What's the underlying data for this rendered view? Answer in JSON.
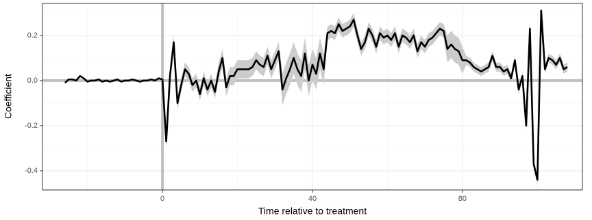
{
  "chart_data": {
    "type": "line",
    "xlabel": "Time relative to treatment",
    "ylabel": "Coefficient",
    "x": [
      -26,
      -25,
      -24,
      -23,
      -22,
      -21,
      -20,
      -19,
      -18,
      -17,
      -16,
      -15,
      -14,
      -13,
      -12,
      -11,
      -10,
      -9,
      -8,
      -7,
      -6,
      -5,
      -4,
      -3,
      -2,
      -1,
      0,
      1,
      2,
      3,
      4,
      5,
      6,
      7,
      8,
      9,
      10,
      11,
      12,
      13,
      14,
      15,
      16,
      17,
      18,
      19,
      20,
      21,
      22,
      23,
      24,
      25,
      26,
      27,
      28,
      29,
      30,
      31,
      32,
      33,
      34,
      35,
      36,
      37,
      38,
      39,
      40,
      41,
      42,
      43,
      44,
      45,
      46,
      47,
      48,
      49,
      50,
      51,
      52,
      53,
      54,
      55,
      56,
      57,
      58,
      59,
      60,
      61,
      62,
      63,
      64,
      65,
      66,
      67,
      68,
      69,
      70,
      71,
      72,
      73,
      74,
      75,
      76,
      77,
      78,
      79,
      80,
      81,
      82,
      83,
      84,
      85,
      86,
      87,
      88,
      89,
      90,
      91,
      92,
      93,
      94,
      95,
      96,
      97,
      98,
      99,
      100,
      101,
      102,
      103,
      104,
      105,
      106,
      107,
      108
    ],
    "series": [
      {
        "color": "#000000",
        "values": [
          -0.01,
          0.005,
          0.005,
          0,
          0.02,
          0.01,
          -0.005,
          0,
          0,
          0.005,
          -0.005,
          0,
          -0.005,
          0,
          0.005,
          -0.005,
          0,
          0,
          0.005,
          0,
          -0.005,
          0,
          0,
          0.005,
          0,
          0.01,
          0.005,
          -0.27,
          0.02,
          0.17,
          -0.1,
          -0.02,
          0.05,
          0.03,
          -0.02,
          0,
          -0.06,
          0.01,
          -0.04,
          0,
          -0.05,
          0.04,
          0.1,
          -0.03,
          0.02,
          0.02,
          0.05,
          0.05,
          0.05,
          0.05,
          0.06,
          0.09,
          0.07,
          0.06,
          0.11,
          0.05,
          0.09,
          0.13,
          -0.04,
          0.01,
          0.05,
          0.1,
          0.05,
          0.02,
          0.12,
          0,
          0.07,
          0.03,
          0.12,
          0.05,
          0.21,
          0.22,
          0.21,
          0.25,
          0.22,
          0.23,
          0.24,
          0.27,
          0.2,
          0.14,
          0.17,
          0.23,
          0.2,
          0.15,
          0.21,
          0.19,
          0.2,
          0.18,
          0.21,
          0.15,
          0.2,
          0.19,
          0.17,
          0.2,
          0.13,
          0.17,
          0.15,
          0.18,
          0.19,
          0.21,
          0.23,
          0.22,
          0.14,
          0.16,
          0.14,
          0.13,
          0.09,
          0.09,
          0.08,
          0.06,
          0.05,
          0.04,
          0.05,
          0.06,
          0.11,
          0.06,
          0.06,
          0.04,
          0.05,
          0.01,
          0.09,
          -0.04,
          0.02,
          -0.2,
          0.23,
          -0.37,
          -0.44,
          0.31,
          0.05,
          0.1,
          0.09,
          0.07,
          0.1,
          0.05,
          0.06
        ]
      }
    ],
    "ribbon": {
      "color": "#cccccc",
      "upper": [
        null,
        null,
        null,
        null,
        null,
        null,
        null,
        null,
        null,
        null,
        null,
        null,
        null,
        null,
        null,
        null,
        null,
        null,
        null,
        null,
        null,
        null,
        null,
        null,
        null,
        null,
        0.035,
        -0.24,
        0.05,
        0.2,
        -0.07,
        0.01,
        0.08,
        0.06,
        0.01,
        0.03,
        -0.03,
        0.04,
        -0.01,
        0.03,
        -0.02,
        0.08,
        0.14,
        0.01,
        0.06,
        0.06,
        0.09,
        0.09,
        0.09,
        0.09,
        0.1,
        0.13,
        0.11,
        0.1,
        0.15,
        0.09,
        0.13,
        0.17,
        0.03,
        0.08,
        0.12,
        0.17,
        0.12,
        0.09,
        0.19,
        0.07,
        0.14,
        0.1,
        0.19,
        0.12,
        0.24,
        0.25,
        0.24,
        0.28,
        0.25,
        0.26,
        0.27,
        0.3,
        0.23,
        0.17,
        0.2,
        0.26,
        0.23,
        0.18,
        0.24,
        0.22,
        0.23,
        0.21,
        0.24,
        0.18,
        0.23,
        0.22,
        0.2,
        0.23,
        0.16,
        0.2,
        0.18,
        0.21,
        0.22,
        0.24,
        0.26,
        0.25,
        0.2,
        0.22,
        0.2,
        0.19,
        0.15,
        0.11,
        0.1,
        0.08,
        0.07,
        0.06,
        0.07,
        0.08,
        0.13,
        0.08,
        0.08,
        0.06,
        0.07,
        0.03,
        0.11,
        -0.02,
        0.04,
        -0.18,
        0.25,
        -0.35,
        -0.42,
        0.33,
        0.07,
        0.12,
        0.11,
        0.09,
        0.12,
        0.07,
        0.08
      ],
      "lower": [
        null,
        null,
        null,
        null,
        null,
        null,
        null,
        null,
        null,
        null,
        null,
        null,
        null,
        null,
        null,
        null,
        null,
        null,
        null,
        null,
        null,
        null,
        null,
        null,
        null,
        null,
        -0.025,
        -0.3,
        -0.01,
        0.14,
        -0.13,
        -0.05,
        0.02,
        0,
        -0.05,
        -0.03,
        -0.09,
        -0.02,
        -0.07,
        -0.03,
        -0.08,
        0,
        0.06,
        -0.07,
        -0.02,
        -0.02,
        0.01,
        0.01,
        0.01,
        0.01,
        0.02,
        0.05,
        0.03,
        0.02,
        0.07,
        0.01,
        0.05,
        0.09,
        -0.11,
        -0.06,
        -0.02,
        0.03,
        -0.02,
        -0.05,
        0.05,
        -0.07,
        0,
        -0.04,
        0.05,
        -0.02,
        0.18,
        0.19,
        0.18,
        0.22,
        0.19,
        0.2,
        0.21,
        0.24,
        0.17,
        0.11,
        0.14,
        0.2,
        0.17,
        0.12,
        0.18,
        0.16,
        0.17,
        0.15,
        0.18,
        0.12,
        0.17,
        0.16,
        0.14,
        0.17,
        0.1,
        0.14,
        0.12,
        0.15,
        0.16,
        0.18,
        0.2,
        0.19,
        0.08,
        0.1,
        0.08,
        0.07,
        0.03,
        0.07,
        0.06,
        0.04,
        0.03,
        0.02,
        0.03,
        0.04,
        0.09,
        0.04,
        0.04,
        0.02,
        0.03,
        -0.01,
        0.07,
        -0.06,
        0,
        -0.22,
        0.21,
        -0.39,
        -0.46,
        0.29,
        0.03,
        0.08,
        0.07,
        0.05,
        0.08,
        0.03,
        0.04
      ]
    },
    "vline": 0,
    "hline": 0,
    "xlim": [
      -32,
      112
    ],
    "ylim": [
      -0.485,
      0.342
    ],
    "xticks": [
      0,
      40,
      80
    ],
    "yticks": [
      -0.4,
      -0.2,
      {
        "value": 0,
        "label": "0.0"
      },
      0.2
    ],
    "minor_xticks": [
      -20,
      20,
      60,
      100
    ],
    "minor_yticks": [
      -0.3,
      -0.1,
      0.1,
      0.3
    ],
    "grid": true
  }
}
